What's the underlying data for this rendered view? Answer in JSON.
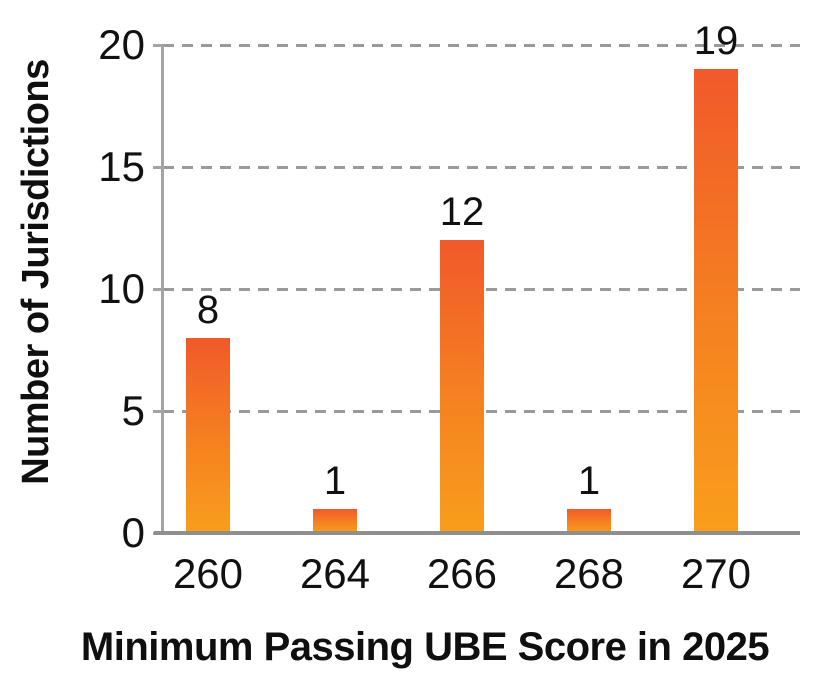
{
  "chart_data": {
    "type": "bar",
    "title": "",
    "categories": [
      "260",
      "264",
      "266",
      "268",
      "270"
    ],
    "values": [
      8,
      1,
      12,
      1,
      19
    ],
    "bar_labels": [
      "8",
      "1",
      "12",
      "1",
      "19"
    ],
    "xlabel": "Minimum Passing UBE Score in 2025",
    "ylabel": "Number of Jurisdictions",
    "ylim": [
      0,
      20
    ],
    "yticks": [
      0,
      5,
      10,
      15,
      20
    ],
    "grid": "horizontal dashed gridlines at 5, 10, 15, 20",
    "legend_position": "none",
    "colors": {
      "bar_gradient_top": "#f1592a",
      "bar_gradient_bottom": "#f99e1c",
      "gridline": "#9a9a9a",
      "axis": "#a3a3a3",
      "baseline": "#8f8f8f",
      "text": "#111111"
    }
  }
}
